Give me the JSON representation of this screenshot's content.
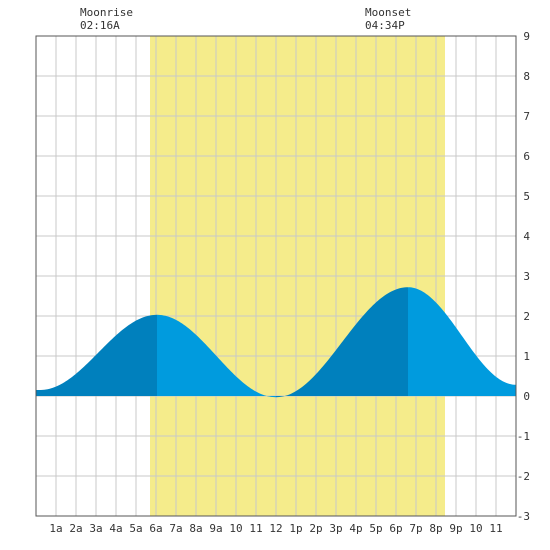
{
  "header": {
    "moonrise_label": "Moonrise",
    "moonrise_time": "02:16A",
    "moonset_label": "Moonset",
    "moonset_time": "04:34P"
  },
  "chart_data": {
    "type": "area",
    "title": "",
    "xlabel": "",
    "ylabel": "",
    "xlim": [
      0,
      24
    ],
    "ylim": [
      -3,
      9
    ],
    "y_ticks": [
      -3,
      -2,
      -1,
      0,
      1,
      2,
      3,
      4,
      5,
      6,
      7,
      8,
      9
    ],
    "x_ticks": [
      {
        "hour": 1,
        "label": "1a"
      },
      {
        "hour": 2,
        "label": "2a"
      },
      {
        "hour": 3,
        "label": "3a"
      },
      {
        "hour": 4,
        "label": "4a"
      },
      {
        "hour": 5,
        "label": "5a"
      },
      {
        "hour": 6,
        "label": "6a"
      },
      {
        "hour": 7,
        "label": "7a"
      },
      {
        "hour": 8,
        "label": "8a"
      },
      {
        "hour": 9,
        "label": "9a"
      },
      {
        "hour": 10,
        "label": "10"
      },
      {
        "hour": 11,
        "label": "11"
      },
      {
        "hour": 12,
        "label": "12"
      },
      {
        "hour": 13,
        "label": "1p"
      },
      {
        "hour": 14,
        "label": "2p"
      },
      {
        "hour": 15,
        "label": "3p"
      },
      {
        "hour": 16,
        "label": "4p"
      },
      {
        "hour": 17,
        "label": "5p"
      },
      {
        "hour": 18,
        "label": "6p"
      },
      {
        "hour": 19,
        "label": "7p"
      },
      {
        "hour": 20,
        "label": "8p"
      },
      {
        "hour": 21,
        "label": "9p"
      },
      {
        "hour": 22,
        "label": "10"
      },
      {
        "hour": 23,
        "label": "11"
      }
    ],
    "grid": true,
    "daylight": {
      "start": 5.7,
      "end": 20.45
    },
    "tide_extremes": [
      {
        "hour": 0.0,
        "value": 0.15
      },
      {
        "hour": 0.2,
        "value": 0.15
      },
      {
        "hour": 6.05,
        "value": 2.03
      },
      {
        "hour": 12.0,
        "value": -0.03
      },
      {
        "hour": 18.6,
        "value": 2.72
      },
      {
        "hour": 24.0,
        "value": 0.28
      }
    ],
    "shade_split_hours": [
      6.05,
      18.6
    ],
    "colors": {
      "daylight": "#f5ec8b",
      "tide_rising": "#0080bd",
      "tide_falling": "#009bde",
      "grid": "#c8c8c8",
      "border": "#555555",
      "text": "#333333"
    }
  }
}
